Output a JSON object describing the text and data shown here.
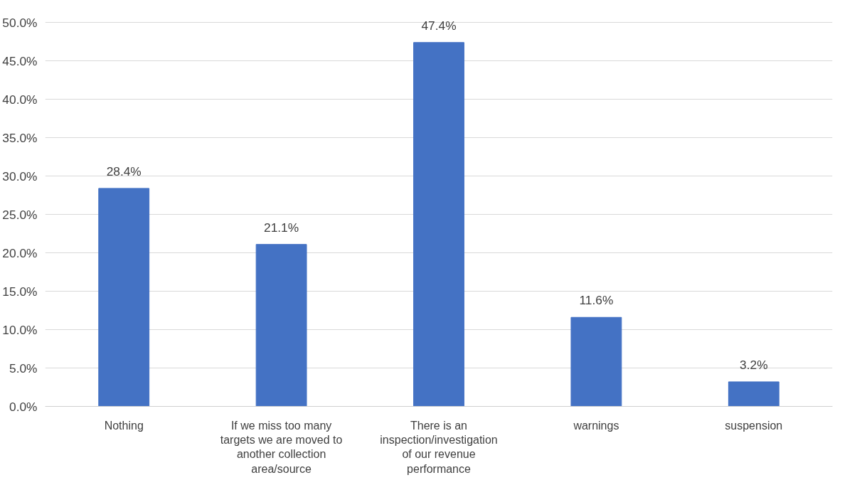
{
  "chart_data": {
    "type": "bar",
    "categories": [
      "Nothing",
      "If we miss too many targets we are moved to another collection area/source",
      "There is an inspection/investigation of our revenue performance",
      "warnings",
      "suspension"
    ],
    "values": [
      28.4,
      21.1,
      47.4,
      11.6,
      3.2
    ],
    "value_labels": [
      "28.4%",
      "21.1%",
      "47.4%",
      "11.6%",
      "3.2%"
    ],
    "color": "#4472c4",
    "ylim": [
      0,
      50
    ],
    "yticks": [
      {
        "value": 0,
        "label": "0.0%"
      },
      {
        "value": 5,
        "label": "5.0%"
      },
      {
        "value": 10,
        "label": "10.0%"
      },
      {
        "value": 15,
        "label": "15.0%"
      },
      {
        "value": 20,
        "label": "20.0%"
      },
      {
        "value": 25,
        "label": "25.0%"
      },
      {
        "value": 30,
        "label": "30.0%"
      },
      {
        "value": 35,
        "label": "35.0%"
      },
      {
        "value": 40,
        "label": "40.0%"
      },
      {
        "value": 45,
        "label": "45.0%"
      },
      {
        "value": 50,
        "label": "50.0%"
      }
    ],
    "grid": "y"
  }
}
